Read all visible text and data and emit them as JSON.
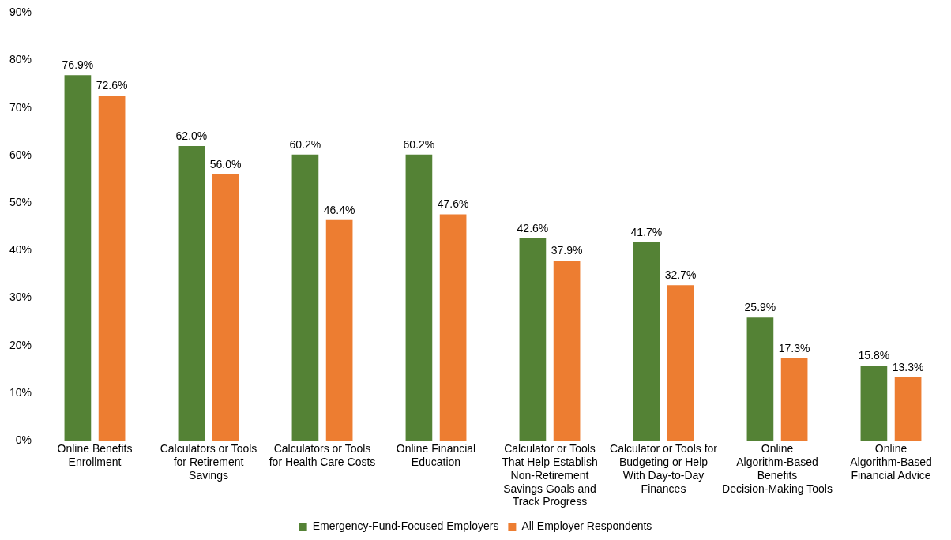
{
  "chart_data": {
    "type": "bar",
    "categories": [
      "Online Benefits Enrollment",
      "Calculators or Tools for Retirement Savings",
      "Calculators or Tools for Health Care Costs",
      "Online Financial Education",
      "Calculator or Tools That Help Establish Non-Retirement Savings Goals and Track Progress",
      "Calculator or Tools for Budgeting or Help With Day-to-Day Finances",
      "Online Algorithm-Based Benefits Decision-Making Tools",
      "Online Algorithm-Based Financial Advice"
    ],
    "series": [
      {
        "name": "Emergency-Fund-Focused Employers",
        "color": "#548235",
        "values": [
          76.9,
          62.0,
          60.2,
          60.2,
          42.6,
          41.7,
          25.9,
          15.8
        ],
        "value_labels": [
          "76.9%",
          "62.0%",
          "60.2%",
          "60.2%",
          "42.6%",
          "41.7%",
          "25.9%",
          "15.8%"
        ]
      },
      {
        "name": "All Employer Respondents",
        "color": "#ed7d31",
        "values": [
          72.6,
          56.0,
          46.4,
          47.6,
          37.9,
          32.7,
          17.3,
          13.3
        ],
        "value_labels": [
          "72.6%",
          "56.0%",
          "46.4%",
          "47.6%",
          "37.9%",
          "32.7%",
          "17.3%",
          "13.3%"
        ]
      }
    ],
    "ylim": [
      0,
      90
    ],
    "yticks": [
      {
        "value": 0,
        "label": "0%"
      },
      {
        "value": 10,
        "label": "10%"
      },
      {
        "value": 20,
        "label": "20%"
      },
      {
        "value": 30,
        "label": "30%"
      },
      {
        "value": 40,
        "label": "40%"
      },
      {
        "value": 50,
        "label": "50%"
      },
      {
        "value": 60,
        "label": "60%"
      },
      {
        "value": 70,
        "label": "70%"
      },
      {
        "value": 80,
        "label": "80%"
      },
      {
        "value": 90,
        "label": "90%"
      }
    ],
    "grid": false,
    "legend": "bottom"
  }
}
